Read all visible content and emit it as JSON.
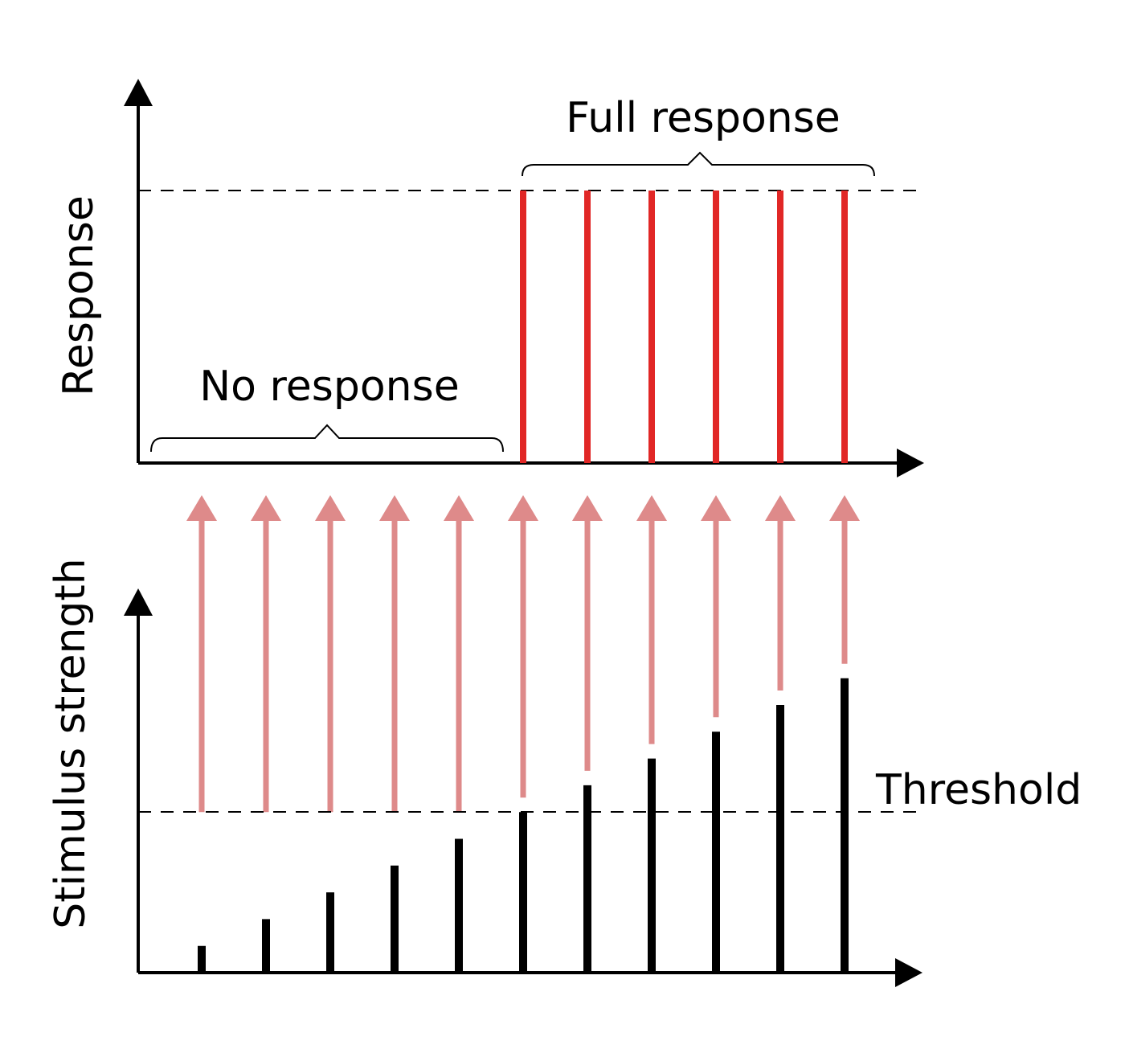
{
  "labels": {
    "response_axis": "Response",
    "stimulus_axis": "Stimulus strength",
    "no_response": "No response",
    "full_response": "Full response",
    "threshold": "Threshold"
  },
  "stimulus_strengths": [
    1,
    2,
    3,
    4,
    5,
    6,
    7,
    8,
    9,
    10,
    11
  ],
  "threshold": 6,
  "responses": [
    0,
    0,
    0,
    0,
    0,
    1,
    1,
    1,
    1,
    1,
    1
  ],
  "colors": {
    "axis": "#000000",
    "stimulus_bar": "#000000",
    "response_bar": "#e12726",
    "transmission_arrow": "#de8a8a",
    "dashed_line": "#000000"
  }
}
